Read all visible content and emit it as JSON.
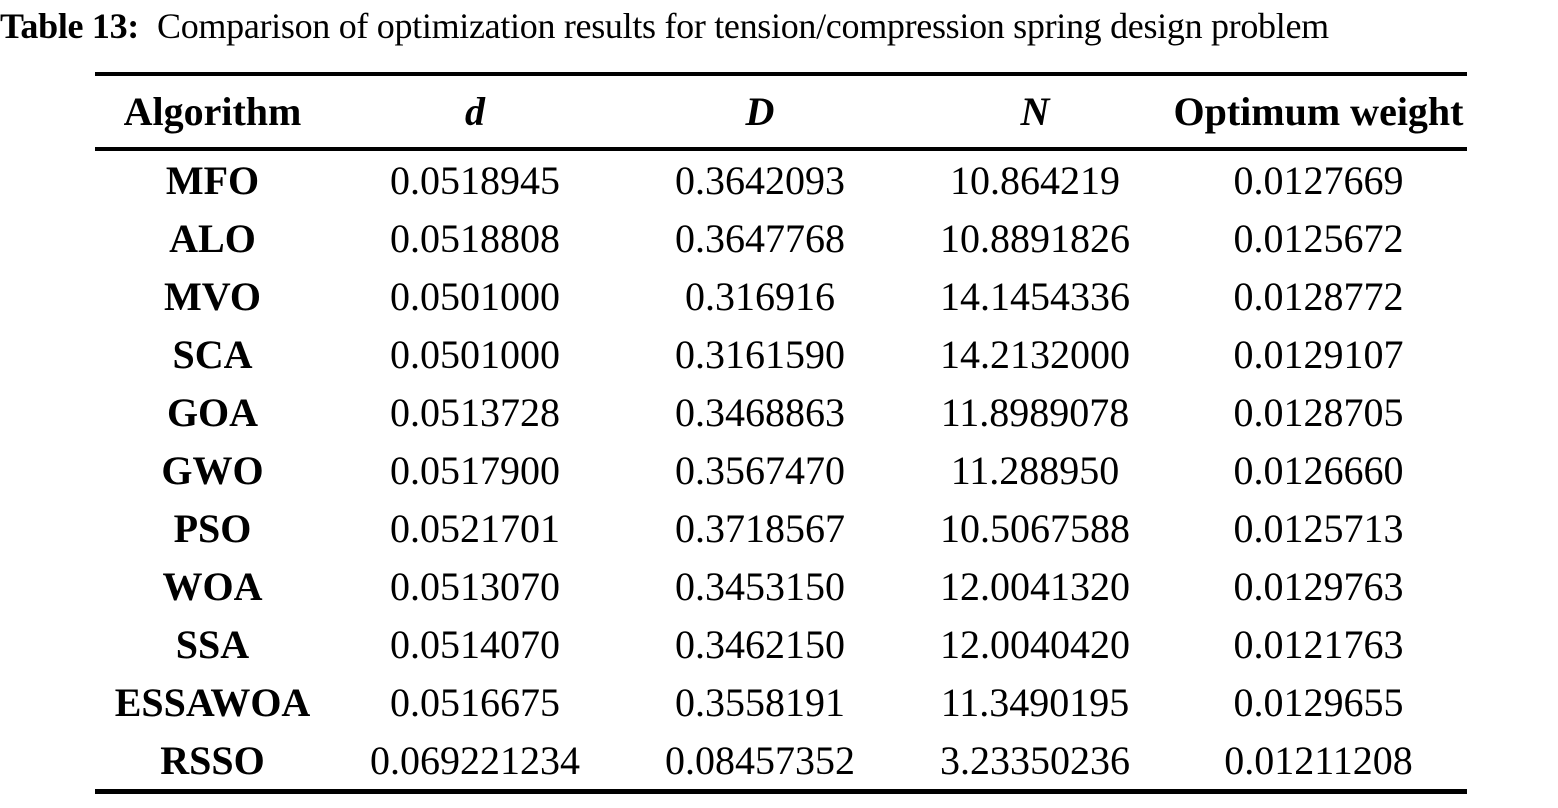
{
  "caption": {
    "label": "Table 13:",
    "text": "Comparison of optimization results for tension/compression spring design problem"
  },
  "table": {
    "columns": [
      "Algorithm",
      "d",
      "D",
      "N",
      "Optimum weight"
    ],
    "rows": [
      [
        "MFO",
        "0.0518945",
        "0.3642093",
        "10.864219",
        "0.0127669"
      ],
      [
        "ALO",
        "0.0518808",
        "0.3647768",
        "10.8891826",
        "0.0125672"
      ],
      [
        "MVO",
        "0.0501000",
        "0.316916",
        "14.1454336",
        "0.0128772"
      ],
      [
        "SCA",
        "0.0501000",
        "0.3161590",
        "14.2132000",
        "0.0129107"
      ],
      [
        "GOA",
        "0.0513728",
        "0.3468863",
        "11.8989078",
        "0.0128705"
      ],
      [
        "GWO",
        "0.0517900",
        "0.3567470",
        "11.288950",
        "0.0126660"
      ],
      [
        "PSO",
        "0.0521701",
        "0.3718567",
        "10.5067588",
        "0.0125713"
      ],
      [
        "WOA",
        "0.0513070",
        "0.3453150",
        "12.0041320",
        "0.0129763"
      ],
      [
        "SSA",
        "0.0514070",
        "0.3462150",
        "12.0040420",
        "0.0121763"
      ],
      [
        "ESSAWOA",
        "0.0516675",
        "0.3558191",
        "11.3490195",
        "0.0129655"
      ],
      [
        "RSSO",
        "0.069221234",
        "0.08457352",
        "3.23350236",
        "0.01211208"
      ]
    ]
  },
  "colors": {
    "text": "#000000",
    "background": "#ffffff",
    "rule": "#000000"
  }
}
